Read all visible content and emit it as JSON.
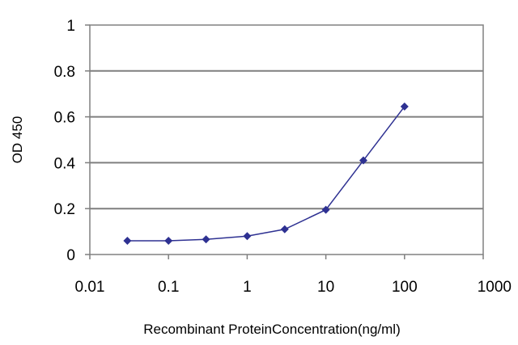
{
  "chart_data": {
    "type": "line",
    "xscale": "log",
    "xlim": [
      0.01,
      1000
    ],
    "ylim": [
      0,
      1
    ],
    "x_ticks": [
      {
        "value": 0.01,
        "label": "0.01"
      },
      {
        "value": 0.1,
        "label": "0.1"
      },
      {
        "value": 1,
        "label": "1"
      },
      {
        "value": 10,
        "label": "10"
      },
      {
        "value": 100,
        "label": "100"
      },
      {
        "value": 1000,
        "label": "1000"
      }
    ],
    "y_ticks": [
      {
        "value": 0,
        "label": "0"
      },
      {
        "value": 0.2,
        "label": "0.2"
      },
      {
        "value": 0.4,
        "label": "0.4"
      },
      {
        "value": 0.6,
        "label": "0.6"
      },
      {
        "value": 0.8,
        "label": "0.8"
      },
      {
        "value": 1,
        "label": "1"
      }
    ],
    "xlabel": "Recombinant ProteinConcentration(ng/ml)",
    "ylabel": "OD 450",
    "grid": "horizontal",
    "legend": "none",
    "series": [
      {
        "color": "#2e3192",
        "marker": "diamond",
        "x": [
          0.03,
          0.1,
          0.3,
          1,
          3,
          10,
          30,
          100
        ],
        "y": [
          0.06,
          0.06,
          0.066,
          0.08,
          0.11,
          0.195,
          0.41,
          0.645
        ]
      }
    ]
  }
}
